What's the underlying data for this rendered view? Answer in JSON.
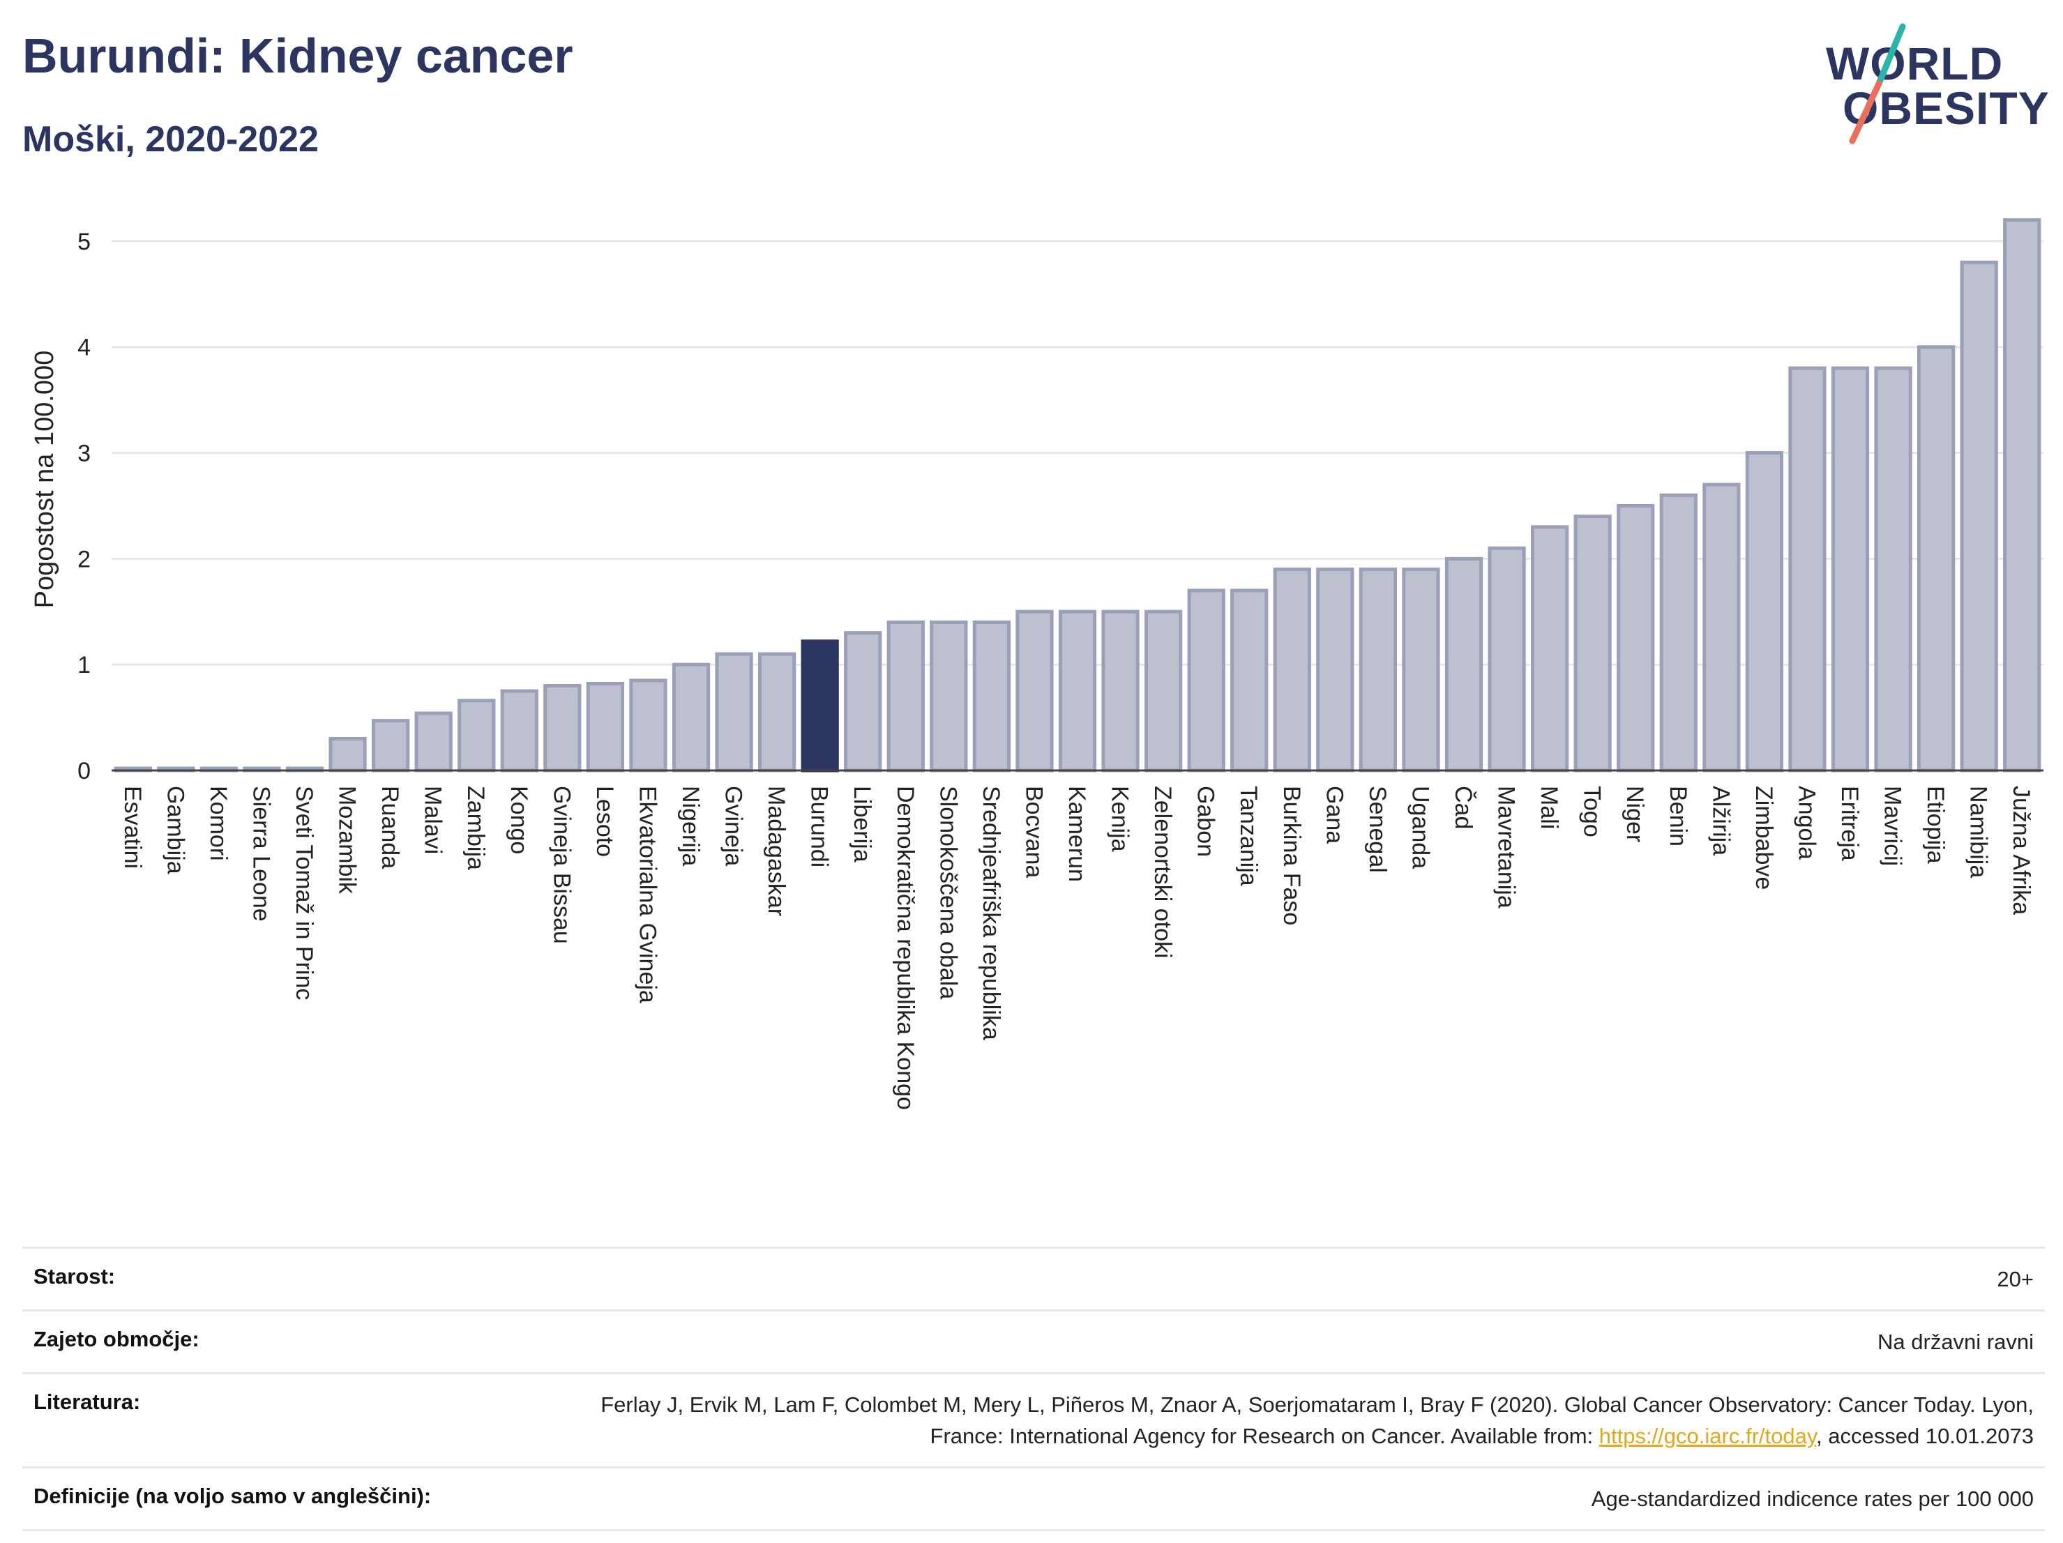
{
  "header": {
    "title": "Burundi: Kidney cancer",
    "subtitle": "Moški, 2020-2022",
    "logo_line1": "WORLD",
    "logo_line2": "OBESITY"
  },
  "colors": {
    "title": "#2b3560",
    "bar": "#bcc0cf",
    "bar_stroke": "#9aa0b8",
    "highlight": "#2b3560",
    "grid": "#e6e6ea",
    "logo_teal": "#2bb5a8",
    "logo_coral": "#e8705d",
    "link": "#e0a81d"
  },
  "chart_data": {
    "type": "bar",
    "ylabel": "Pogostost na 100.000",
    "xlabel": "",
    "ylim": [
      0,
      5.5
    ],
    "yticks": [
      0,
      1,
      2,
      3,
      4,
      5
    ],
    "grid": true,
    "highlight": "Burundi",
    "categories": [
      "Esvatini",
      "Gambija",
      "Komori",
      "Sierra Leone",
      "Sveti Tomaž in Princ",
      "Mozambik",
      "Ruanda",
      "Malavi",
      "Zambija",
      "Kongo",
      "Gvineja Bissau",
      "Lesoto",
      "Ekvatorialna Gvineja",
      "Nigerija",
      "Gvineja",
      "Madagaskar",
      "Burundi",
      "Liberija",
      "Demokratična republika Kongo",
      "Slonokoščena obala",
      "Srednjeafriška republika",
      "Bocvana",
      "Kamerun",
      "Kenija",
      "Zelenortski otoki",
      "Gabon",
      "Tanzanija",
      "Burkina Faso",
      "Gana",
      "Senegal",
      "Uganda",
      "Čad",
      "Mavretanija",
      "Mali",
      "Togo",
      "Niger",
      "Benin",
      "Alžirija",
      "Zimbabve",
      "Angola",
      "Eritreja",
      "Mavricij",
      "Etiopija",
      "Namibija",
      "Južna Afrika"
    ],
    "values": [
      0.02,
      0.02,
      0.02,
      0.02,
      0.02,
      0.3,
      0.47,
      0.54,
      0.66,
      0.75,
      0.8,
      0.82,
      0.85,
      1.0,
      1.1,
      1.1,
      1.22,
      1.3,
      1.4,
      1.4,
      1.4,
      1.5,
      1.5,
      1.5,
      1.5,
      1.7,
      1.7,
      1.9,
      1.9,
      1.9,
      1.9,
      2.0,
      2.1,
      2.3,
      2.4,
      2.5,
      2.6,
      2.7,
      3.0,
      3.8,
      3.8,
      3.8,
      4.0,
      4.8,
      5.2
    ]
  },
  "meta": {
    "age_label": "Starost:",
    "age_value": "20+",
    "coverage_label": "Zajeto območje:",
    "coverage_value": "Na državni ravni",
    "lit_label": "Literatura:",
    "lit_text_1": "Ferlay J, Ervik M, Lam F, Colombet M, Mery L, Piñeros M, Znaor A, Soerjomataram I, Bray F (2020). Global Cancer Observatory: Cancer Today. Lyon, France: International Agency for Research on Cancer. Available from: ",
    "lit_link": "https://gco.iarc.fr/today",
    "lit_text_2": ", accessed 10.01.2073",
    "def_label": "Definicije (na voljo samo v angleščini):",
    "def_value": "Age-standardized indicence rates per 100 000"
  }
}
